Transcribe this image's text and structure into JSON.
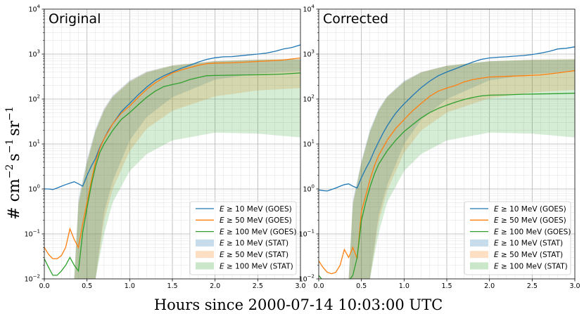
{
  "chart_data": [
    {
      "type": "line",
      "title": "Original",
      "x_range": [
        0.0,
        3.0
      ],
      "y_range": [
        0.01,
        10000
      ],
      "y_scale": "log",
      "grid": true,
      "legend_position": "bottom-right",
      "series": [
        {
          "name": "E ≥ 10 MeV (GOES)",
          "color": "#1f77b4",
          "kind": "line",
          "x": [
            0.0,
            0.05,
            0.1,
            0.15,
            0.2,
            0.25,
            0.3,
            0.35,
            0.4,
            0.45,
            0.5,
            0.55,
            0.6,
            0.65,
            0.7,
            0.75,
            0.8,
            0.85,
            0.9,
            0.95,
            1.0,
            1.1,
            1.2,
            1.3,
            1.4,
            1.5,
            1.6,
            1.7,
            1.8,
            1.9,
            2.0,
            2.1,
            2.2,
            2.3,
            2.4,
            2.5,
            2.6,
            2.7,
            2.8,
            2.9,
            3.0
          ],
          "y": [
            1.0,
            1.0,
            0.97,
            1.05,
            1.15,
            1.25,
            1.35,
            1.45,
            1.3,
            1.15,
            2.0,
            3.2,
            4.8,
            8.5,
            13,
            20,
            28,
            38,
            52,
            65,
            80,
            125,
            185,
            260,
            330,
            400,
            480,
            560,
            660,
            760,
            830,
            870,
            880,
            920,
            960,
            1000,
            1050,
            1150,
            1300,
            1400,
            1600
          ]
        },
        {
          "name": "E ≥ 50 MeV (GOES)",
          "color": "#ff7f0e",
          "kind": "line",
          "x": [
            0.0,
            0.05,
            0.1,
            0.15,
            0.2,
            0.25,
            0.3,
            0.35,
            0.4,
            0.45,
            0.5,
            0.55,
            0.6,
            0.65,
            0.7,
            0.8,
            0.9,
            1.0,
            1.1,
            1.2,
            1.3,
            1.4,
            1.5,
            1.6,
            1.7,
            1.8,
            1.9,
            2.0,
            2.2,
            2.4,
            2.6,
            2.8,
            3.0
          ],
          "y": [
            0.05,
            0.035,
            0.028,
            0.028,
            0.033,
            0.05,
            0.13,
            0.075,
            0.05,
            0.17,
            0.5,
            1.5,
            4.0,
            8.0,
            13,
            28,
            48,
            70,
            110,
            165,
            230,
            300,
            380,
            440,
            500,
            560,
            610,
            630,
            640,
            670,
            700,
            740,
            820
          ]
        },
        {
          "name": "E ≥ 100 MeV (GOES)",
          "color": "#2ca02c",
          "kind": "line",
          "x": [
            0.0,
            0.05,
            0.1,
            0.15,
            0.2,
            0.25,
            0.3,
            0.35,
            0.4,
            0.45,
            0.5,
            0.55,
            0.6,
            0.65,
            0.7,
            0.8,
            0.9,
            1.0,
            1.1,
            1.2,
            1.3,
            1.4,
            1.5,
            1.6,
            1.7,
            1.8,
            1.9,
            2.0,
            2.2,
            2.4,
            2.6,
            2.8,
            3.0
          ],
          "y": [
            0.028,
            0.018,
            0.012,
            0.012,
            0.015,
            0.02,
            0.03,
            0.02,
            0.015,
            0.11,
            0.38,
            1.2,
            3.2,
            6.5,
            10,
            20,
            35,
            50,
            75,
            110,
            150,
            190,
            210,
            230,
            270,
            300,
            330,
            335,
            340,
            345,
            350,
            360,
            380
          ]
        },
        {
          "name": "E ≥ 10 MeV (STAT)",
          "color": "#1f77b4",
          "kind": "band",
          "x": [
            0.35,
            0.4,
            0.5,
            0.6,
            0.7,
            0.8,
            1.0,
            1.2,
            1.5,
            2.0,
            2.5,
            3.0
          ],
          "lower": [
            0.01,
            0.01,
            0.01,
            0.01,
            0.3,
            1.5,
            12,
            40,
            110,
            270,
            370,
            420
          ],
          "upper": [
            0.01,
            0.6,
            4.5,
            22,
            62,
            120,
            260,
            410,
            560,
            700,
            750,
            760
          ]
        },
        {
          "name": "E ≥ 50 MeV (STAT)",
          "color": "#ff7f0e",
          "kind": "band",
          "x": [
            0.35,
            0.4,
            0.5,
            0.6,
            0.7,
            0.8,
            1.0,
            1.2,
            1.5,
            2.0,
            2.5,
            3.0
          ],
          "lower": [
            0.01,
            0.01,
            0.01,
            0.01,
            0.2,
            1.0,
            7,
            22,
            55,
            115,
            155,
            175
          ],
          "upper": [
            0.01,
            0.5,
            4.0,
            20,
            58,
            115,
            250,
            400,
            560,
            700,
            760,
            780
          ]
        },
        {
          "name": "E ≥ 100 MeV (STAT)",
          "color": "#2ca02c",
          "kind": "band",
          "x": [
            0.35,
            0.4,
            0.5,
            0.6,
            0.7,
            0.8,
            1.0,
            1.2,
            1.5,
            2.0,
            2.5,
            3.0
          ],
          "lower": [
            0.01,
            0.01,
            0.01,
            0.01,
            0.1,
            0.5,
            2.5,
            6,
            12,
            18,
            17,
            14
          ],
          "upper": [
            0.01,
            0.45,
            3.8,
            19,
            55,
            110,
            240,
            390,
            550,
            690,
            750,
            770
          ]
        }
      ]
    },
    {
      "type": "line",
      "title": "Corrected",
      "x_range": [
        0.0,
        3.0
      ],
      "y_range": [
        0.01,
        10000
      ],
      "y_scale": "log",
      "grid": true,
      "legend_position": "bottom-right",
      "series": [
        {
          "name": "E ≥ 10 MeV (GOES)",
          "color": "#1f77b4",
          "kind": "line",
          "x": [
            0.0,
            0.05,
            0.1,
            0.15,
            0.2,
            0.25,
            0.3,
            0.35,
            0.4,
            0.45,
            0.5,
            0.55,
            0.6,
            0.65,
            0.7,
            0.75,
            0.8,
            0.85,
            0.9,
            0.95,
            1.0,
            1.1,
            1.2,
            1.3,
            1.4,
            1.5,
            1.6,
            1.7,
            1.8,
            1.9,
            2.0,
            2.1,
            2.2,
            2.3,
            2.4,
            2.5,
            2.6,
            2.7,
            2.8,
            2.9,
            3.0
          ],
          "y": [
            0.95,
            0.92,
            0.9,
            0.97,
            1.05,
            1.15,
            1.25,
            1.3,
            1.15,
            1.05,
            1.8,
            2.8,
            4.2,
            7,
            11,
            17,
            25,
            35,
            48,
            62,
            78,
            120,
            180,
            250,
            330,
            400,
            470,
            560,
            660,
            760,
            820,
            850,
            870,
            900,
            930,
            980,
            1050,
            1150,
            1300,
            1350,
            1450
          ]
        },
        {
          "name": "E ≥ 50 MeV (GOES)",
          "color": "#ff7f0e",
          "kind": "line",
          "x": [
            0.0,
            0.05,
            0.1,
            0.15,
            0.2,
            0.25,
            0.3,
            0.35,
            0.4,
            0.45,
            0.5,
            0.55,
            0.6,
            0.65,
            0.7,
            0.8,
            0.9,
            1.0,
            1.1,
            1.2,
            1.3,
            1.4,
            1.5,
            1.6,
            1.7,
            1.8,
            1.9,
            2.0,
            2.2,
            2.4,
            2.6,
            2.8,
            3.0
          ],
          "y": [
            0.025,
            0.018,
            0.014,
            0.013,
            0.014,
            0.02,
            0.045,
            0.03,
            0.05,
            0.028,
            0.32,
            0.7,
            1.6,
            3.2,
            5.5,
            12,
            22,
            35,
            55,
            80,
            115,
            150,
            175,
            200,
            240,
            270,
            290,
            310,
            320,
            330,
            345,
            380,
            430
          ]
        },
        {
          "name": "E ≥ 100 MeV (GOES)",
          "color": "#2ca02c",
          "kind": "line",
          "x": [
            0.0,
            0.05,
            0.1,
            0.15,
            0.2,
            0.25,
            0.3,
            0.35,
            0.4,
            0.45,
            0.5,
            0.55,
            0.6,
            0.65,
            0.7,
            0.8,
            0.9,
            1.0,
            1.1,
            1.2,
            1.3,
            1.4,
            1.5,
            1.6,
            1.7,
            1.8,
            1.9,
            2.0,
            2.2,
            2.4,
            2.6,
            2.8,
            3.0
          ],
          "y": [
            0.012,
            0.009,
            0.008,
            0.008,
            0.008,
            0.009,
            0.01,
            0.009,
            0.012,
            0.03,
            0.2,
            0.5,
            1.1,
            2.1,
            3.5,
            7,
            12,
            19,
            27,
            38,
            50,
            62,
            73,
            85,
            97,
            108,
            117,
            122,
            124,
            128,
            130,
            132,
            135
          ]
        },
        {
          "name": "E ≥ 10 MeV (STAT)",
          "color": "#1f77b4",
          "kind": "band",
          "x": [
            0.35,
            0.4,
            0.5,
            0.6,
            0.7,
            0.8,
            1.0,
            1.2,
            1.5,
            2.0,
            2.5,
            3.0
          ],
          "lower": [
            0.01,
            0.01,
            0.01,
            0.01,
            0.25,
            1.2,
            10,
            35,
            100,
            260,
            360,
            410
          ],
          "upper": [
            0.01,
            0.55,
            4.2,
            21,
            60,
            115,
            255,
            400,
            550,
            690,
            740,
            750
          ]
        },
        {
          "name": "E ≥ 50 MeV (STAT)",
          "color": "#ff7f0e",
          "kind": "band",
          "x": [
            0.35,
            0.4,
            0.5,
            0.6,
            0.7,
            0.8,
            1.0,
            1.2,
            1.5,
            2.0,
            2.5,
            3.0
          ],
          "lower": [
            0.01,
            0.01,
            0.01,
            0.01,
            0.18,
            0.9,
            6.5,
            20,
            50,
            105,
            140,
            160
          ],
          "upper": [
            0.01,
            0.48,
            3.9,
            19,
            56,
            112,
            245,
            395,
            550,
            690,
            750,
            770
          ]
        },
        {
          "name": "E ≥ 100 MeV (STAT)",
          "color": "#2ca02c",
          "kind": "band",
          "x": [
            0.35,
            0.4,
            0.5,
            0.6,
            0.7,
            0.8,
            1.0,
            1.2,
            1.5,
            2.0,
            2.5,
            3.0
          ],
          "lower": [
            0.01,
            0.01,
            0.01,
            0.01,
            0.1,
            0.5,
            2.5,
            6,
            12,
            18,
            17,
            14
          ],
          "upper": [
            0.01,
            0.45,
            3.8,
            19,
            55,
            110,
            240,
            390,
            550,
            690,
            750,
            770
          ]
        }
      ]
    }
  ],
  "axes": {
    "xlabel": "Hours since 2000-07-14 10:03:00 UTC",
    "ylabel": "# cm",
    "ylabel_exp_cm": "−2",
    "ylabel_s": "s",
    "ylabel_exp_s": "−1",
    "ylabel_sr": "sr",
    "ylabel_exp_sr": "−1",
    "x_ticks": [
      {
        "value": 0.0,
        "label": "0.0"
      },
      {
        "value": 0.5,
        "label": "0.5"
      },
      {
        "value": 1.0,
        "label": "1.0"
      },
      {
        "value": 1.5,
        "label": "1.5"
      },
      {
        "value": 2.0,
        "label": "2.0"
      },
      {
        "value": 2.5,
        "label": "2.5"
      },
      {
        "value": 3.0,
        "label": "3.0"
      }
    ],
    "y_ticks": [
      {
        "value": 0.01,
        "base": "10",
        "exp": "−2"
      },
      {
        "value": 0.1,
        "base": "10",
        "exp": "−1"
      },
      {
        "value": 1,
        "base": "10",
        "exp": "0"
      },
      {
        "value": 10,
        "base": "10",
        "exp": "1"
      },
      {
        "value": 100,
        "base": "10",
        "exp": "2"
      },
      {
        "value": 1000,
        "base": "10",
        "exp": "3"
      },
      {
        "value": 10000,
        "base": "10",
        "exp": "4"
      }
    ]
  },
  "legend": {
    "entries": [
      {
        "prefix": "E",
        "rest": " ≥  10 MeV (GOES)"
      },
      {
        "prefix": "E",
        "rest": " ≥  50 MeV (GOES)"
      },
      {
        "prefix": "E",
        "rest": " ≥  100 MeV (GOES)"
      },
      {
        "prefix": "E",
        "rest": " ≥  10 MeV (STAT)"
      },
      {
        "prefix": "E",
        "rest": " ≥  50 MeV (STAT)"
      },
      {
        "prefix": "E",
        "rest": " ≥  100 MeV (STAT)"
      }
    ]
  }
}
